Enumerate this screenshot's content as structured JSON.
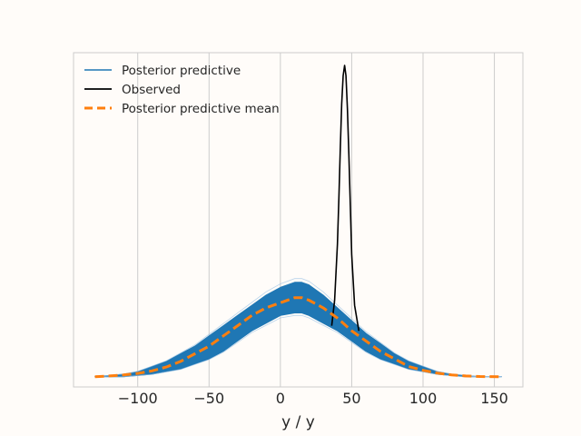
{
  "chart_data": {
    "type": "line",
    "title": "",
    "xlabel": "y / y",
    "ylabel": "",
    "xlim": [
      -145,
      170
    ],
    "ylim": [
      -0.004,
      0.127
    ],
    "xticks": [
      -100,
      -50,
      0,
      50,
      100,
      150
    ],
    "xtick_labels": [
      "−100",
      "−50",
      "0",
      "50",
      "100",
      "150"
    ],
    "show_y_ticks": false,
    "grid": "vertical",
    "legend": {
      "placement": "top-left"
    },
    "series": [
      {
        "name": "Posterior predictive",
        "style": "band",
        "color": "#1f77b4",
        "x": [
          -130,
          -120,
          -110,
          -100,
          -90,
          -80,
          -70,
          -60,
          -50,
          -40,
          -30,
          -20,
          -10,
          0,
          10,
          15,
          20,
          30,
          40,
          50,
          60,
          70,
          80,
          90,
          100,
          110,
          120,
          130,
          140,
          155
        ],
        "lower": [
          0.0,
          0.0,
          0.0,
          0.0005,
          0.001,
          0.002,
          0.003,
          0.005,
          0.007,
          0.01,
          0.014,
          0.018,
          0.021,
          0.024,
          0.025,
          0.025,
          0.024,
          0.021,
          0.018,
          0.014,
          0.01,
          0.007,
          0.005,
          0.003,
          0.002,
          0.001,
          0.0005,
          0.0,
          0.0,
          0.0
        ],
        "upper": [
          0.0,
          0.0005,
          0.001,
          0.002,
          0.004,
          0.006,
          0.009,
          0.012,
          0.016,
          0.02,
          0.024,
          0.028,
          0.032,
          0.035,
          0.037,
          0.037,
          0.036,
          0.032,
          0.027,
          0.022,
          0.017,
          0.013,
          0.009,
          0.006,
          0.004,
          0.002,
          0.001,
          0.0005,
          0.0,
          0.0
        ]
      },
      {
        "name": "Observed",
        "style": "solid",
        "color": "#000000",
        "x": [
          36,
          38,
          40,
          41,
          42,
          43,
          44,
          45,
          46,
          47,
          48,
          49,
          50,
          52,
          55
        ],
        "y": [
          0.02,
          0.03,
          0.052,
          0.07,
          0.09,
          0.107,
          0.118,
          0.122,
          0.118,
          0.105,
          0.087,
          0.067,
          0.048,
          0.028,
          0.018
        ]
      },
      {
        "name": "Posterior predictive mean",
        "style": "dashed",
        "color": "#ff7f0e",
        "x": [
          -130,
          -120,
          -110,
          -100,
          -90,
          -80,
          -70,
          -60,
          -50,
          -40,
          -30,
          -20,
          -10,
          0,
          10,
          15,
          20,
          30,
          40,
          50,
          60,
          70,
          80,
          90,
          100,
          110,
          120,
          130,
          140,
          155
        ],
        "y": [
          0.0,
          0.0003,
          0.0007,
          0.0013,
          0.0023,
          0.0038,
          0.006,
          0.009,
          0.012,
          0.016,
          0.02,
          0.024,
          0.027,
          0.029,
          0.031,
          0.031,
          0.03,
          0.027,
          0.023,
          0.018,
          0.014,
          0.01,
          0.007,
          0.004,
          0.0025,
          0.0014,
          0.0007,
          0.0003,
          0.0001,
          0.0
        ]
      }
    ]
  }
}
